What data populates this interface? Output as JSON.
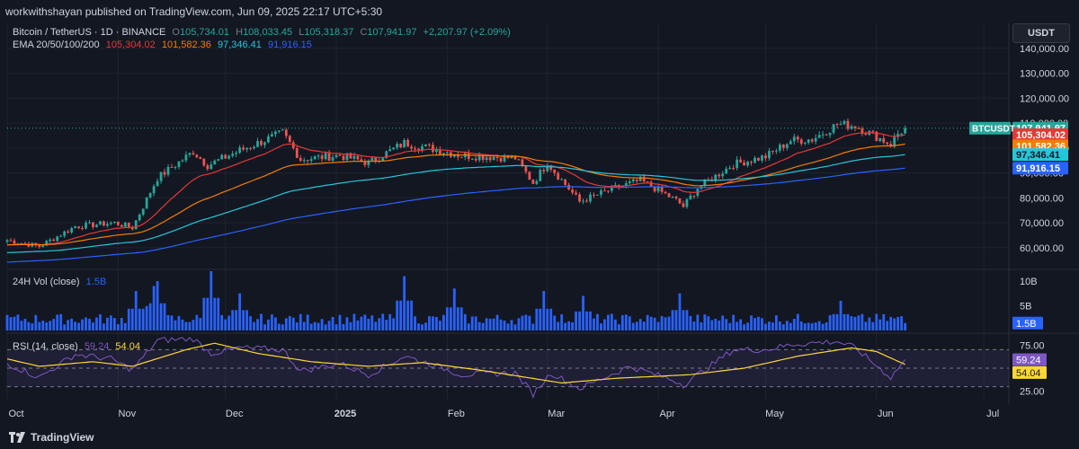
{
  "publisher_line": "workwithshayan published on TradingView.com, Jun 09, 2025 22:17 UTC+5:30",
  "footer": {
    "brand": "TradingView"
  },
  "currency_button": "USDT",
  "colors": {
    "background": "#131722",
    "up": "#26a69a",
    "down": "#ef5350",
    "ema20": "#e53935",
    "ema50": "#f57c00",
    "ema100": "#26c6da",
    "ema200": "#2962ff",
    "volume": "#2962ff",
    "rsi": "#7e57c2",
    "rsi_ma": "#fdd835",
    "text": "#d1d4dc",
    "muted": "#787b86"
  },
  "legend": {
    "symbol": "Bitcoin / TetherUS · 1D · BINANCE",
    "o_label": "O",
    "o_value": "105,734.01",
    "h_label": "H",
    "h_value": "108,033.45",
    "l_label": "L",
    "l_value": "105,318.37",
    "c_label": "C",
    "c_value": "107,941.97",
    "change": "+2,207.97 (+2.09%)",
    "ema_label": "EMA 20/50/100/200",
    "ema20": "105,304.02",
    "ema50": "101,582.36",
    "ema100": "97,346.41",
    "ema200": "91,916.15",
    "vol_label": "24H Vol (close)",
    "vol_value": "1.5B",
    "rsi_label": "RSI (14, close)",
    "rsi_value": "59.24",
    "rsi_ma_value": "54.04"
  },
  "chart_data": [
    {
      "type": "candlestick",
      "title": "Bitcoin / TetherUS · 1D · BINANCE",
      "unit": "USDT",
      "ylim": [
        52000,
        150000
      ],
      "yticks": [
        60000,
        70000,
        80000,
        90000,
        100000,
        110000,
        120000,
        130000,
        140000
      ],
      "ytick_labels": [
        "60,000.00",
        "70,000.00",
        "80,000.00",
        "90,000.00",
        "100,000.00",
        "110,000.00",
        "120,000.00",
        "130,000.00",
        "140,000.00"
      ],
      "x_start": "2024-10-01",
      "x_end": "2025-07-08",
      "xticks": [
        "2024-10-01",
        "2024-11-01",
        "2024-12-01",
        "2025-01-01",
        "2025-02-01",
        "2025-03-01",
        "2025-04-01",
        "2025-05-01",
        "2025-06-01",
        "2025-07-01"
      ],
      "xtick_labels": [
        "Oct",
        "Nov",
        "Dec",
        "2025",
        "Feb",
        "Mar",
        "Apr",
        "May",
        "Jun",
        "Jul"
      ],
      "close_keyframes": [
        [
          "2024-10-01",
          63000
        ],
        [
          "2024-10-10",
          60500
        ],
        [
          "2024-10-20",
          68500
        ],
        [
          "2024-10-31",
          70000
        ],
        [
          "2024-11-05",
          68000
        ],
        [
          "2024-11-12",
          88000
        ],
        [
          "2024-11-22",
          98500
        ],
        [
          "2024-11-26",
          93000
        ],
        [
          "2024-12-05",
          99000
        ],
        [
          "2024-12-17",
          106000
        ],
        [
          "2024-12-22",
          95500
        ],
        [
          "2025-01-02",
          97000
        ],
        [
          "2025-01-10",
          94000
        ],
        [
          "2025-01-20",
          102000
        ],
        [
          "2025-01-27",
          100000
        ],
        [
          "2025-02-05",
          97000
        ],
        [
          "2025-02-20",
          96000
        ],
        [
          "2025-02-25",
          86000
        ],
        [
          "2025-03-01",
          94000
        ],
        [
          "2025-03-10",
          78500
        ],
        [
          "2025-03-20",
          84000
        ],
        [
          "2025-03-27",
          87000
        ],
        [
          "2025-04-06",
          79000
        ],
        [
          "2025-04-08",
          76500
        ],
        [
          "2025-04-12",
          84000
        ],
        [
          "2025-04-22",
          93500
        ],
        [
          "2025-05-01",
          96500
        ],
        [
          "2025-05-08",
          103000
        ],
        [
          "2025-05-14",
          103500
        ],
        [
          "2025-05-21",
          109500
        ],
        [
          "2025-05-26",
          109000
        ],
        [
          "2025-06-05",
          101500
        ],
        [
          "2025-06-07",
          105700
        ],
        [
          "2025-06-09",
          107941.97
        ]
      ],
      "series": [
        {
          "name": "EMA 20",
          "color": "#e53935",
          "last": 105304.02,
          "price_label": "105,304.02"
        },
        {
          "name": "EMA 50",
          "color": "#f57c00",
          "last": 101582.36,
          "price_label": "101,582.36"
        },
        {
          "name": "EMA 100",
          "color": "#26c6da",
          "last": 97346.41,
          "price_label": "97,346.41"
        },
        {
          "name": "EMA 200",
          "color": "#2962ff",
          "last": 91916.15,
          "price_label": "91,916.15"
        }
      ],
      "last_price": 107941.97,
      "last_price_label": "107,941.97",
      "last_price_tag": "BTCUSDT"
    },
    {
      "type": "bar",
      "title": "24H Vol (close)",
      "ylim": [
        0,
        12
      ],
      "yticks": [
        5,
        10
      ],
      "ytick_labels": [
        "5B",
        "10B"
      ],
      "last_value_label": "1.5B",
      "volume_peaks_b": [
        [
          "2024-11-06",
          8
        ],
        [
          "2024-11-11",
          9
        ],
        [
          "2024-11-12",
          10
        ],
        [
          "2024-11-27",
          12
        ],
        [
          "2024-12-05",
          7.5
        ],
        [
          "2025-01-20",
          11
        ],
        [
          "2025-02-03",
          8.5
        ],
        [
          "2025-02-28",
          8
        ],
        [
          "2025-03-11",
          7
        ],
        [
          "2025-04-07",
          7.5
        ],
        [
          "2025-05-22",
          6
        ]
      ]
    },
    {
      "type": "line",
      "title": "RSI (14, close)",
      "ylim": [
        15,
        85
      ],
      "yticks": [
        25,
        75
      ],
      "ytick_labels": [
        "25.00",
        "75.00"
      ],
      "bands": [
        30,
        50,
        70
      ],
      "rsi_keyframes": [
        [
          "2024-10-01",
          55
        ],
        [
          "2024-10-10",
          40
        ],
        [
          "2024-10-20",
          65
        ],
        [
          "2024-10-30",
          60
        ],
        [
          "2024-11-05",
          48
        ],
        [
          "2024-11-12",
          80
        ],
        [
          "2024-11-22",
          82
        ],
        [
          "2024-11-27",
          66
        ],
        [
          "2024-12-05",
          72
        ],
        [
          "2024-12-17",
          70
        ],
        [
          "2024-12-22",
          47
        ],
        [
          "2025-01-02",
          55
        ],
        [
          "2025-01-10",
          43
        ],
        [
          "2025-01-20",
          63
        ],
        [
          "2025-01-27",
          55
        ],
        [
          "2025-02-05",
          43
        ],
        [
          "2025-02-20",
          45
        ],
        [
          "2025-02-25",
          22
        ],
        [
          "2025-03-02",
          45
        ],
        [
          "2025-03-10",
          28
        ],
        [
          "2025-03-24",
          52
        ],
        [
          "2025-04-06",
          36
        ],
        [
          "2025-04-08",
          32
        ],
        [
          "2025-04-22",
          70
        ],
        [
          "2025-05-01",
          70
        ],
        [
          "2025-05-09",
          76
        ],
        [
          "2025-05-21",
          79
        ],
        [
          "2025-05-26",
          72
        ],
        [
          "2025-06-05",
          40
        ],
        [
          "2025-06-09",
          59.24
        ]
      ],
      "ma_keyframes": [
        [
          "2024-10-01",
          60
        ],
        [
          "2024-10-10",
          52
        ],
        [
          "2024-10-25",
          57
        ],
        [
          "2024-11-05",
          52
        ],
        [
          "2024-11-20",
          70
        ],
        [
          "2024-11-28",
          77
        ],
        [
          "2024-12-10",
          66
        ],
        [
          "2024-12-25",
          57
        ],
        [
          "2025-01-10",
          52
        ],
        [
          "2025-01-25",
          56
        ],
        [
          "2025-02-10",
          48
        ],
        [
          "2025-03-05",
          34
        ],
        [
          "2025-03-20",
          39
        ],
        [
          "2025-04-10",
          43
        ],
        [
          "2025-04-25",
          50
        ],
        [
          "2025-05-10",
          63
        ],
        [
          "2025-05-25",
          72
        ],
        [
          "2025-06-01",
          68
        ],
        [
          "2025-06-09",
          54.04
        ]
      ],
      "last_value_label": "59.24",
      "ma_last_value_label": "54.04"
    }
  ]
}
